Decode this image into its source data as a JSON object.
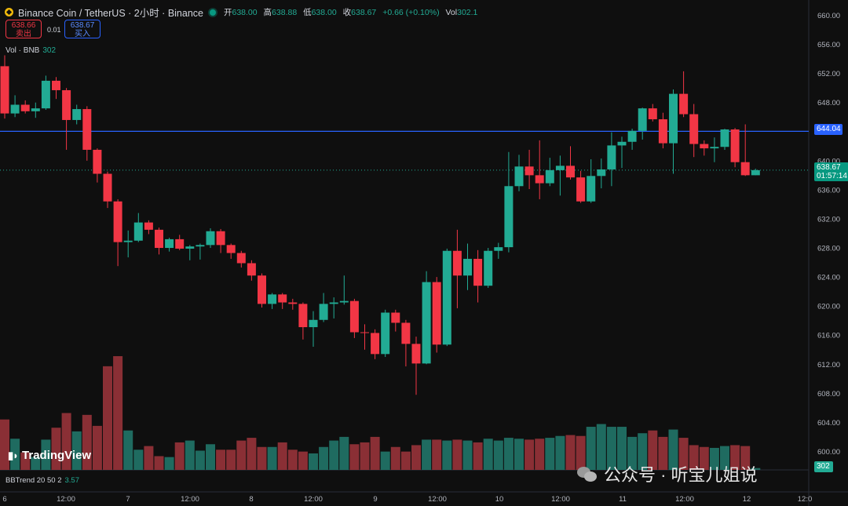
{
  "header": {
    "title": "Binance Coin / TetherUS · 2小时 · Binance",
    "ohlc": [
      {
        "label": "开",
        "value": "638.00"
      },
      {
        "label": "高",
        "value": "638.88"
      },
      {
        "label": "低",
        "value": "638.00"
      },
      {
        "label": "收",
        "value": "638.67"
      }
    ],
    "change": "+0.66 (+0.10%)",
    "vol_label": "Vol",
    "vol_value": "302.1"
  },
  "trade": {
    "sell_price": "638.66",
    "sell_label": "卖出",
    "spread": "0.01",
    "buy_price": "638.67",
    "buy_label": "买入"
  },
  "volume_legend": {
    "label": "Vol · BNB",
    "value": "302"
  },
  "indicator": {
    "label": "BBTrend 20 50 2",
    "value": "3.57"
  },
  "branding": {
    "logo": "TradingView",
    "watermark": "公众号 · 听宝儿姐说"
  },
  "price_tags": {
    "line_price": "644.04",
    "current_price": "638.67",
    "countdown": "01:57:14",
    "volume_tag": "302"
  },
  "colors": {
    "up": "#22ab94",
    "down": "#f23645",
    "line": "#2962ff",
    "background": "#0f0f0f"
  },
  "chart_data": {
    "type": "candlestick",
    "y_ticks": [
      "660.00",
      "656.00",
      "652.00",
      "648.00",
      "644.00",
      "640.00",
      "636.00",
      "632.00",
      "628.00",
      "624.00",
      "620.00",
      "616.00",
      "612.00",
      "608.00",
      "604.00",
      "600.00"
    ],
    "x_labels": [
      "6",
      "12:00",
      "7",
      "12:00",
      "8",
      "12:00",
      "9",
      "12:00",
      "10",
      "12:00",
      "11",
      "12:00",
      "12",
      "12:0"
    ],
    "ylim": [
      598,
      662
    ],
    "horizontal_line": 644.04,
    "candles": [
      {
        "o": 653,
        "h": 654.5,
        "l": 645.8,
        "c": 646.5,
        "v": 55
      },
      {
        "o": 646.5,
        "h": 649,
        "l": 646,
        "c": 647.7,
        "v": 34
      },
      {
        "o": 647.7,
        "h": 648.3,
        "l": 646.5,
        "c": 646.8,
        "v": 19
      },
      {
        "o": 646.8,
        "h": 648,
        "l": 645.9,
        "c": 647.2,
        "v": 14
      },
      {
        "o": 647.2,
        "h": 651.7,
        "l": 647,
        "c": 651,
        "v": 33
      },
      {
        "o": 651,
        "h": 651.5,
        "l": 648.5,
        "c": 649.7,
        "v": 46
      },
      {
        "o": 649.7,
        "h": 650,
        "l": 641.5,
        "c": 645.6,
        "v": 62
      },
      {
        "o": 645.6,
        "h": 647.7,
        "l": 645,
        "c": 647.1,
        "v": 42
      },
      {
        "o": 647.1,
        "h": 647.5,
        "l": 640,
        "c": 641.5,
        "v": 60
      },
      {
        "o": 641.5,
        "h": 641.7,
        "l": 637,
        "c": 638.2,
        "v": 48
      },
      {
        "o": 638.2,
        "h": 638.5,
        "l": 633.5,
        "c": 634.4,
        "v": 113
      },
      {
        "o": 634.4,
        "h": 634.7,
        "l": 625.5,
        "c": 628.8,
        "v": 124
      },
      {
        "o": 628.8,
        "h": 630.4,
        "l": 626.7,
        "c": 629,
        "v": 43
      },
      {
        "o": 629,
        "h": 632.8,
        "l": 628.8,
        "c": 631.5,
        "v": 22
      },
      {
        "o": 631.5,
        "h": 631.8,
        "l": 629.9,
        "c": 630.5,
        "v": 26
      },
      {
        "o": 630.5,
        "h": 630.8,
        "l": 627.1,
        "c": 628,
        "v": 15
      },
      {
        "o": 628,
        "h": 629.4,
        "l": 627.5,
        "c": 629.2,
        "v": 14
      },
      {
        "o": 629.2,
        "h": 629.8,
        "l": 627.7,
        "c": 627.9,
        "v": 30
      },
      {
        "o": 627.9,
        "h": 628.4,
        "l": 626.3,
        "c": 628.2,
        "v": 32
      },
      {
        "o": 628.2,
        "h": 628.6,
        "l": 626.4,
        "c": 628.4,
        "v": 21
      },
      {
        "o": 628.4,
        "h": 630.7,
        "l": 628,
        "c": 630.3,
        "v": 28
      },
      {
        "o": 630.3,
        "h": 630.6,
        "l": 627.3,
        "c": 628.4,
        "v": 22
      },
      {
        "o": 628.4,
        "h": 628.6,
        "l": 626.5,
        "c": 627.3,
        "v": 22
      },
      {
        "o": 627.3,
        "h": 627.6,
        "l": 625.3,
        "c": 625.9,
        "v": 32
      },
      {
        "o": 625.9,
        "h": 626.3,
        "l": 623.5,
        "c": 624.2,
        "v": 35
      },
      {
        "o": 624.2,
        "h": 624.5,
        "l": 619.8,
        "c": 620.3,
        "v": 25
      },
      {
        "o": 620.3,
        "h": 621.8,
        "l": 619.6,
        "c": 621.6,
        "v": 25
      },
      {
        "o": 621.6,
        "h": 621.8,
        "l": 619.6,
        "c": 620.5,
        "v": 30
      },
      {
        "o": 620.5,
        "h": 621,
        "l": 619.5,
        "c": 620.3,
        "v": 22
      },
      {
        "o": 620.3,
        "h": 620.5,
        "l": 615.4,
        "c": 617.1,
        "v": 20
      },
      {
        "o": 617.1,
        "h": 619.3,
        "l": 614.4,
        "c": 618.1,
        "v": 18
      },
      {
        "o": 618.1,
        "h": 621.8,
        "l": 617.8,
        "c": 620.3,
        "v": 25
      },
      {
        "o": 620.3,
        "h": 621.2,
        "l": 618.3,
        "c": 620.5,
        "v": 32
      },
      {
        "o": 620.5,
        "h": 624.2,
        "l": 620.2,
        "c": 620.7,
        "v": 36
      },
      {
        "o": 620.7,
        "h": 621,
        "l": 615.6,
        "c": 616.4,
        "v": 28
      },
      {
        "o": 616.4,
        "h": 617.5,
        "l": 614,
        "c": 616.3,
        "v": 30
      },
      {
        "o": 616.3,
        "h": 616.8,
        "l": 612.7,
        "c": 613.4,
        "v": 36
      },
      {
        "o": 613.4,
        "h": 619.5,
        "l": 613,
        "c": 619.1,
        "v": 20
      },
      {
        "o": 619.1,
        "h": 619.5,
        "l": 616.5,
        "c": 617.7,
        "v": 25
      },
      {
        "o": 617.7,
        "h": 618.1,
        "l": 611.7,
        "c": 614.8,
        "v": 20
      },
      {
        "o": 614.8,
        "h": 615.8,
        "l": 607.8,
        "c": 612.1,
        "v": 27
      },
      {
        "o": 612.1,
        "h": 624.8,
        "l": 612,
        "c": 623.3,
        "v": 33
      },
      {
        "o": 623.3,
        "h": 624,
        "l": 613.6,
        "c": 614.7,
        "v": 33
      },
      {
        "o": 614.7,
        "h": 627.9,
        "l": 614.5,
        "c": 627.6,
        "v": 32
      },
      {
        "o": 627.6,
        "h": 630.5,
        "l": 619.7,
        "c": 624.2,
        "v": 33
      },
      {
        "o": 624.2,
        "h": 628.6,
        "l": 622.2,
        "c": 626.5,
        "v": 32
      },
      {
        "o": 626.5,
        "h": 627.7,
        "l": 620.5,
        "c": 622.8,
        "v": 30
      },
      {
        "o": 622.8,
        "h": 628,
        "l": 622.5,
        "c": 627.6,
        "v": 34
      },
      {
        "o": 627.6,
        "h": 628.7,
        "l": 626.5,
        "c": 628.1,
        "v": 32
      },
      {
        "o": 628.1,
        "h": 641.2,
        "l": 627.4,
        "c": 636.5,
        "v": 35
      },
      {
        "o": 636.5,
        "h": 640.8,
        "l": 635.8,
        "c": 639.2,
        "v": 34
      },
      {
        "o": 639.2,
        "h": 641.5,
        "l": 636.1,
        "c": 638,
        "v": 33
      },
      {
        "o": 638,
        "h": 642.8,
        "l": 634.7,
        "c": 636.9,
        "v": 34
      },
      {
        "o": 636.9,
        "h": 640.4,
        "l": 636.5,
        "c": 638.7,
        "v": 35
      },
      {
        "o": 638.7,
        "h": 640.7,
        "l": 635.2,
        "c": 639.3,
        "v": 37
      },
      {
        "o": 639.3,
        "h": 642,
        "l": 637.4,
        "c": 637.7,
        "v": 38
      },
      {
        "o": 637.7,
        "h": 638.6,
        "l": 634.2,
        "c": 634.4,
        "v": 37
      },
      {
        "o": 634.4,
        "h": 640.2,
        "l": 634.2,
        "c": 637.9,
        "v": 47
      },
      {
        "o": 637.9,
        "h": 640.3,
        "l": 636.2,
        "c": 638.8,
        "v": 50
      },
      {
        "o": 638.8,
        "h": 643.9,
        "l": 636.5,
        "c": 642.1,
        "v": 47
      },
      {
        "o": 642.1,
        "h": 643.3,
        "l": 639,
        "c": 642.6,
        "v": 47
      },
      {
        "o": 642.6,
        "h": 644.4,
        "l": 641.5,
        "c": 644.1,
        "v": 36
      },
      {
        "o": 644.1,
        "h": 647.3,
        "l": 642.9,
        "c": 647.2,
        "v": 40
      },
      {
        "o": 647.2,
        "h": 647.8,
        "l": 645.4,
        "c": 645.7,
        "v": 43
      },
      {
        "o": 645.7,
        "h": 646.6,
        "l": 641.7,
        "c": 642.4,
        "v": 36
      },
      {
        "o": 642.4,
        "h": 649.8,
        "l": 638.2,
        "c": 649.2,
        "v": 44
      },
      {
        "o": 649.2,
        "h": 652.3,
        "l": 646,
        "c": 646.4,
        "v": 35
      },
      {
        "o": 646.4,
        "h": 647.8,
        "l": 640.5,
        "c": 642.3,
        "v": 27
      },
      {
        "o": 642.3,
        "h": 642.8,
        "l": 640.7,
        "c": 641.7,
        "v": 25
      },
      {
        "o": 641.7,
        "h": 643.2,
        "l": 639.8,
        "c": 641.9,
        "v": 24
      },
      {
        "o": 641.9,
        "h": 644.4,
        "l": 641.5,
        "c": 644.3,
        "v": 26
      },
      {
        "o": 644.3,
        "h": 644.5,
        "l": 639.1,
        "c": 639.8,
        "v": 27
      },
      {
        "o": 639.8,
        "h": 645,
        "l": 637.9,
        "c": 638.0,
        "v": 26
      },
      {
        "o": 638.0,
        "h": 638.9,
        "l": 638.0,
        "c": 638.7,
        "v": 2
      }
    ]
  }
}
